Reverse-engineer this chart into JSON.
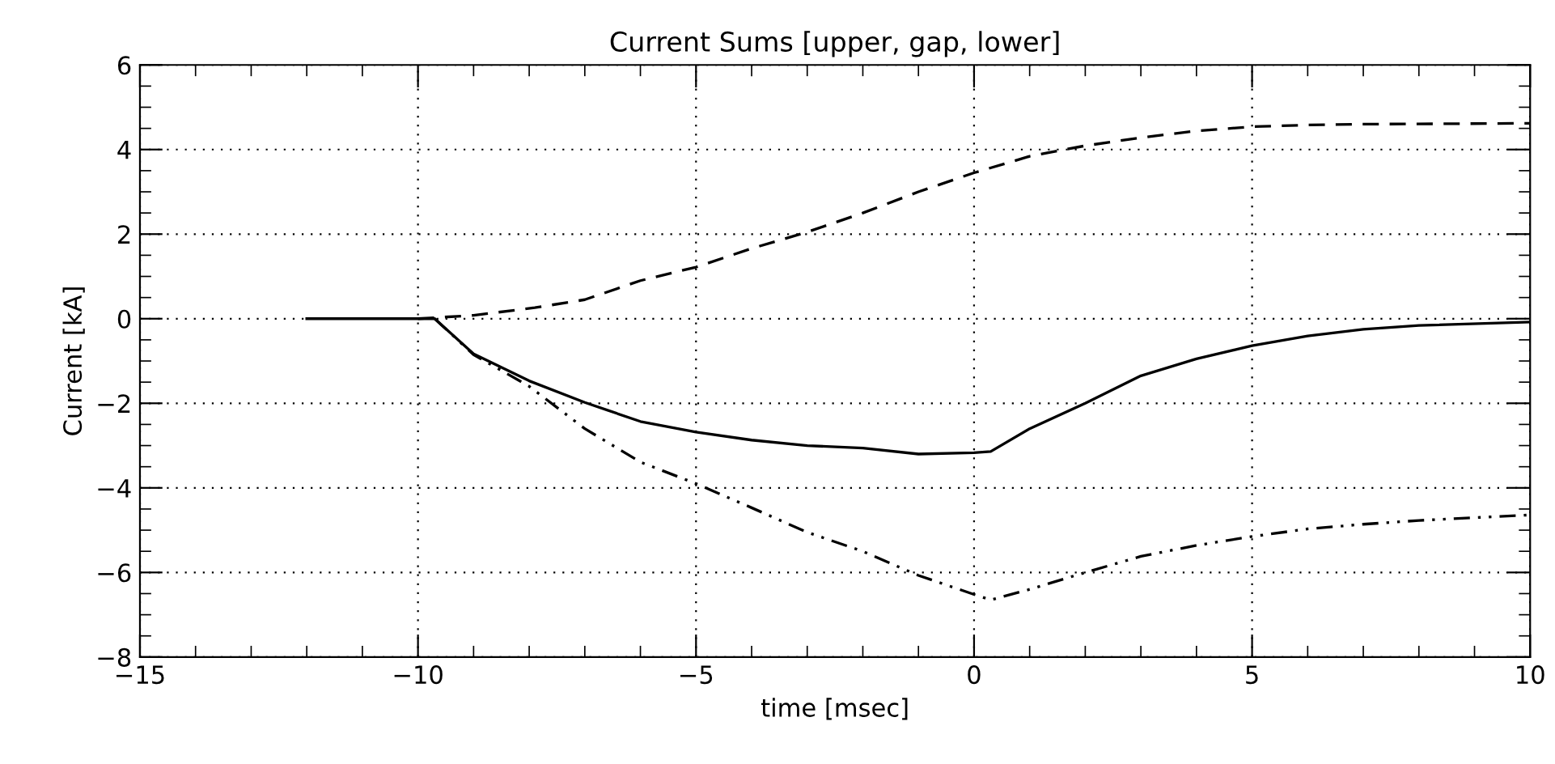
{
  "chart_data": {
    "type": "line",
    "title": "Current Sums [upper, gap, lower]",
    "xlabel": "time [msec]",
    "ylabel": "Current [kA]",
    "xlim": [
      -15,
      10
    ],
    "ylim": [
      -8,
      6
    ],
    "xticks": [
      {
        "value": -15,
        "label": "−15"
      },
      {
        "value": -10,
        "label": "−10"
      },
      {
        "value": -5,
        "label": "−5"
      },
      0,
      5,
      10
    ],
    "yticks": [
      {
        "value": -8,
        "label": "−8"
      },
      {
        "value": -6,
        "label": "−6"
      },
      {
        "value": -4,
        "label": "−4"
      },
      {
        "value": -2,
        "label": "−2"
      },
      0,
      2,
      4,
      6
    ],
    "grid": true,
    "series": [
      {
        "color": "#000000",
        "line_style": "solid",
        "x": [
          -12,
          -9.7,
          -9,
          -8,
          -7,
          -6,
          -5,
          -4,
          -3,
          -2,
          -1,
          0,
          0.3,
          1,
          2,
          3,
          4,
          5,
          6,
          7,
          8,
          10
        ],
        "values": [
          0,
          0,
          -0.83,
          -1.47,
          -1.98,
          -2.43,
          -2.68,
          -2.87,
          -3.0,
          -3.06,
          -3.2,
          -3.17,
          -3.14,
          -2.6,
          -2.0,
          -1.35,
          -0.95,
          -0.64,
          -0.41,
          -0.25,
          -0.16,
          -0.08
        ]
      },
      {
        "color": "#000000",
        "line_style": "dashed",
        "x": [
          -10,
          -9,
          -7.9,
          -7,
          -6,
          -5,
          -4,
          -3,
          -2,
          -1,
          0,
          1,
          2,
          3,
          4,
          5,
          6,
          7,
          10
        ],
        "values": [
          0,
          0.08,
          0.26,
          0.45,
          0.9,
          1.22,
          1.66,
          2.05,
          2.5,
          3.0,
          3.45,
          3.84,
          4.09,
          4.28,
          4.44,
          4.54,
          4.58,
          4.6,
          4.62
        ]
      },
      {
        "color": "#000000",
        "line_style": "dashdotdot",
        "x": [
          -9.7,
          -9,
          -8,
          -7,
          -6,
          -5,
          -4,
          -3,
          -2,
          -1,
          0,
          0.3,
          1,
          2,
          3,
          4,
          5,
          6,
          7,
          8,
          10
        ],
        "values": [
          0,
          -0.85,
          -1.6,
          -2.6,
          -3.39,
          -3.9,
          -4.47,
          -5.05,
          -5.5,
          -6.07,
          -6.52,
          -6.65,
          -6.4,
          -6.0,
          -5.62,
          -5.36,
          -5.15,
          -4.97,
          -4.86,
          -4.77,
          -4.64
        ]
      }
    ]
  }
}
